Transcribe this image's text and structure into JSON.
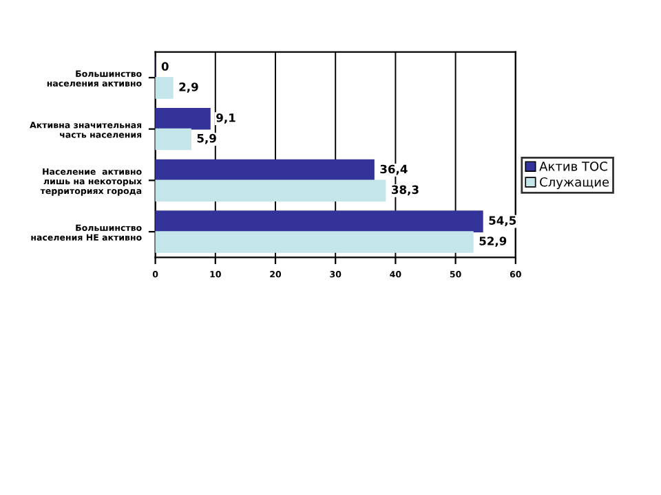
{
  "chart_data": {
    "type": "bar",
    "orientation": "horizontal",
    "categories": [
      "Большинство\nнаселения активно",
      "Активна значительная\nчасть населения",
      "Население  активно\nлишь на некоторых\nтерриториях города",
      "Большинство\nнаселения НЕ активно"
    ],
    "series": [
      {
        "name": "Актив ТОС",
        "color": "#333399",
        "values": [
          0,
          9.1,
          36.4,
          54.5
        ],
        "value_labels": [
          "0",
          "9,1",
          "36,4",
          "54,5"
        ]
      },
      {
        "name": "Служащие",
        "color": "#c4e6ea",
        "values": [
          2.9,
          5.9,
          38.3,
          52.9
        ],
        "value_labels": [
          "2,9",
          "5,9",
          "38,3",
          "52,9"
        ]
      }
    ],
    "xlim": [
      0,
      60
    ],
    "xticks": [
      0,
      10,
      20,
      30,
      40,
      50,
      60
    ],
    "grid": "x",
    "legend": "right"
  }
}
